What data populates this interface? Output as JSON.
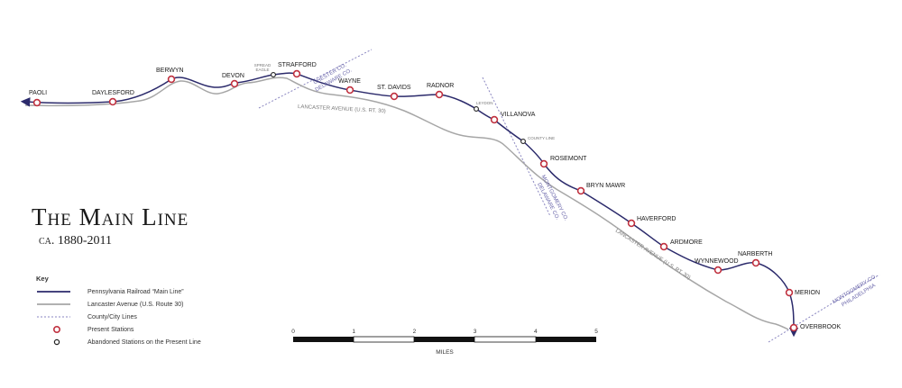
{
  "title": "The Main Line",
  "subtitle": "ca. 1880-2011",
  "colors": {
    "railroad": "#2b2a6b",
    "avenue": "#a6a6a6",
    "county_line": "#8a86c0",
    "station_present": "#c0313f",
    "station_abandoned": "#222222"
  },
  "key": {
    "title": "Key",
    "items": [
      {
        "label": "Pennsylvania Railroad “Main Line”",
        "symbol": "railroad-line"
      },
      {
        "label": "Lancaster Avenue (U.S. Route 30)",
        "symbol": "avenue-line"
      },
      {
        "label": "County/City Lines",
        "symbol": "county-line"
      },
      {
        "label": "Present Stations",
        "symbol": "present-station"
      },
      {
        "label": "Abandoned Stations on the Present Line",
        "symbol": "abandoned-station"
      }
    ]
  },
  "stations": [
    {
      "name": "PAOLI",
      "type": "present"
    },
    {
      "name": "DAYLESFORD",
      "type": "present"
    },
    {
      "name": "BERWYN",
      "type": "present"
    },
    {
      "name": "DEVON",
      "type": "present"
    },
    {
      "name": "SPREAD EAGLE",
      "type": "abandoned"
    },
    {
      "name": "STRAFFORD",
      "type": "present"
    },
    {
      "name": "WAYNE",
      "type": "present"
    },
    {
      "name": "ST. DAVIDS",
      "type": "present"
    },
    {
      "name": "RADNOR",
      "type": "present"
    },
    {
      "name": "LEYDON",
      "type": "abandoned"
    },
    {
      "name": "VILLANOVA",
      "type": "present"
    },
    {
      "name": "COUNTY LINE",
      "type": "abandoned"
    },
    {
      "name": "ROSEMONT",
      "type": "present"
    },
    {
      "name": "BRYN MAWR",
      "type": "present"
    },
    {
      "name": "HAVERFORD",
      "type": "present"
    },
    {
      "name": "ARDMORE",
      "type": "present"
    },
    {
      "name": "WYNNEWOOD",
      "type": "present"
    },
    {
      "name": "NARBERTH",
      "type": "present"
    },
    {
      "name": "MERION",
      "type": "present"
    },
    {
      "name": "OVERBROOK",
      "type": "present"
    }
  ],
  "road_labels": [
    "LANCASTER AVENUE (U.S. RT. 30)",
    "LANCASTER AVENUE (U.S. RT. 30)"
  ],
  "county_labels": [
    {
      "top": "CHESTER CO.",
      "bottom": "DELAWARE CO."
    },
    {
      "top": "MONTGOMERY CO.",
      "bottom": "DELAWARE CO."
    },
    {
      "top": "MONTGOMERY CO.",
      "bottom": "PHILADELPHIA"
    }
  ],
  "scale_bar": {
    "ticks": [
      "0",
      "1",
      "2",
      "3",
      "4",
      "5"
    ],
    "unit": "MILES"
  }
}
